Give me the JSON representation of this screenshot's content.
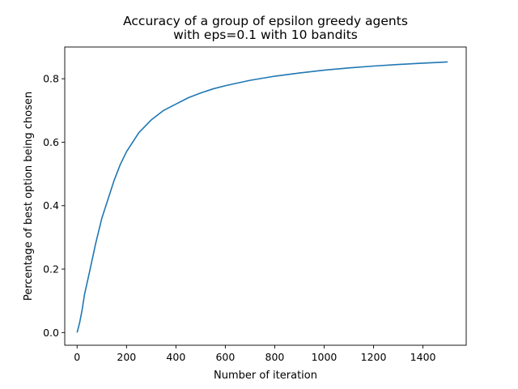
{
  "chart_data": {
    "type": "line",
    "title": [
      "Accuracy of a group of epsilon greedy agents",
      "with eps=0.1 with 10 bandits"
    ],
    "xlabel": "Number of iteration",
    "ylabel": "Percentage of best option being chosen",
    "xlim": [
      -50,
      1575
    ],
    "ylim": [
      -0.04,
      0.9
    ],
    "xticks": [
      0,
      200,
      400,
      600,
      800,
      1000,
      1200,
      1400
    ],
    "yticks": [
      0.0,
      0.2,
      0.4,
      0.6,
      0.8
    ],
    "ytick_labels": [
      "0.0",
      "0.2",
      "0.4",
      "0.6",
      "0.8"
    ],
    "grid": false,
    "line_color": "#1f77b4",
    "series": [
      {
        "x": [
          0,
          10,
          20,
          30,
          50,
          75,
          100,
          125,
          150,
          175,
          200,
          250,
          300,
          350,
          400,
          450,
          500,
          550,
          600,
          700,
          800,
          900,
          1000,
          1100,
          1200,
          1300,
          1400,
          1500
        ],
        "y": [
          0.0,
          0.03,
          0.07,
          0.12,
          0.19,
          0.28,
          0.36,
          0.42,
          0.48,
          0.53,
          0.57,
          0.63,
          0.67,
          0.7,
          0.72,
          0.74,
          0.755,
          0.768,
          0.778,
          0.795,
          0.808,
          0.818,
          0.827,
          0.834,
          0.84,
          0.845,
          0.849,
          0.853
        ]
      }
    ]
  }
}
